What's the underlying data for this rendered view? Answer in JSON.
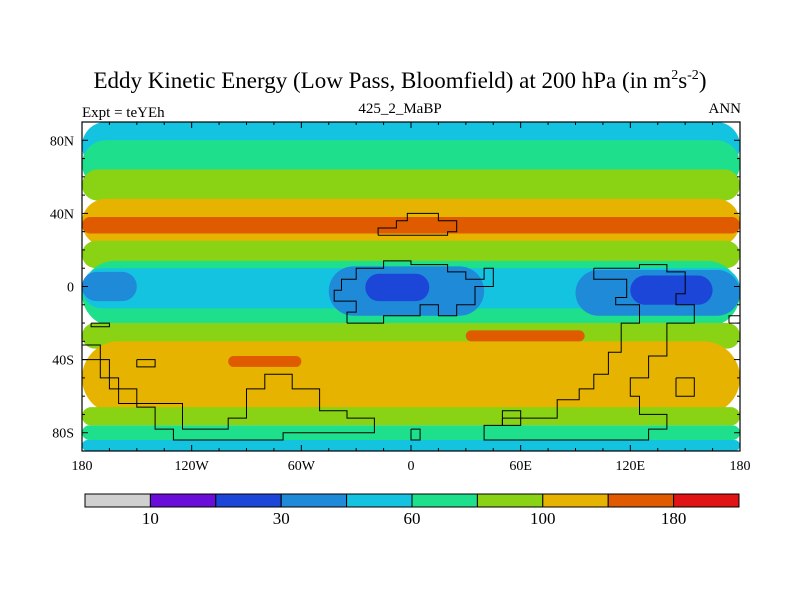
{
  "chart_data": {
    "type": "heatmap",
    "title": {
      "prefix": "Eddy Kinetic Energy (Low Pass, Bloomfield) at 200 hPa (in m",
      "sup1": "2",
      "mid": "s",
      "sup2": "-2",
      "suffix": ")"
    },
    "subtitle": "425_2_MaBP",
    "left_label": "Expt = teYEh",
    "right_label": "ANN",
    "xlim": [
      -180,
      180
    ],
    "ylim": [
      -90,
      90
    ],
    "x_ticks": [
      {
        "value": -180,
        "label": "180"
      },
      {
        "value": -120,
        "label": "120W"
      },
      {
        "value": -60,
        "label": "60W"
      },
      {
        "value": 0,
        "label": "0"
      },
      {
        "value": 60,
        "label": "60E"
      },
      {
        "value": 120,
        "label": "120E"
      },
      {
        "value": 180,
        "label": "180"
      }
    ],
    "y_ticks": [
      {
        "value": 80,
        "label": "80N"
      },
      {
        "value": 40,
        "label": "40N"
      },
      {
        "value": 0,
        "label": "0"
      },
      {
        "value": -40,
        "label": "40S"
      },
      {
        "value": -80,
        "label": "80S"
      }
    ],
    "colorbar": {
      "colors": [
        "#d0d0d0",
        "#6a0dd8",
        "#1c46d8",
        "#1e8ad8",
        "#14c3e0",
        "#1ee08c",
        "#8ad214",
        "#e6b400",
        "#e05a00",
        "#e01414"
      ],
      "labels": [
        {
          "boundary": 1,
          "text": "10"
        },
        {
          "boundary": 3,
          "text": "30"
        },
        {
          "boundary": 5,
          "text": "60"
        },
        {
          "boundary": 7,
          "text": "100"
        },
        {
          "boundary": 9,
          "text": "180"
        }
      ]
    },
    "fields": [
      {
        "level": 4,
        "lat": [
          64,
          90
        ],
        "lon": [
          -180,
          180
        ]
      },
      {
        "level": 5,
        "lat": [
          54,
          80
        ],
        "lon": [
          -180,
          180
        ]
      },
      {
        "level": 6,
        "lat": [
          47,
          64
        ],
        "lon": [
          -180,
          180
        ]
      },
      {
        "level": 7,
        "lat": [
          22,
          48
        ],
        "lon": [
          -180,
          180
        ]
      },
      {
        "level": 8,
        "lat": [
          29,
          38
        ],
        "lon": [
          -180,
          180
        ]
      },
      {
        "level": 6,
        "lat": [
          10,
          25
        ],
        "lon": [
          -180,
          180
        ]
      },
      {
        "level": 5,
        "lat": [
          -22,
          14
        ],
        "lon": [
          -180,
          180
        ]
      },
      {
        "level": 4,
        "lat": [
          -12,
          10
        ],
        "lon": [
          -180,
          180
        ]
      },
      {
        "level": 3,
        "lat": [
          -8,
          8
        ],
        "lon": [
          -180,
          -150
        ]
      },
      {
        "level": 3,
        "lat": [
          -16,
          11
        ],
        "lon": [
          -45,
          40
        ]
      },
      {
        "level": 2,
        "lat": [
          -8,
          7
        ],
        "lon": [
          -25,
          10
        ]
      },
      {
        "level": 3,
        "lat": [
          -16,
          9
        ],
        "lon": [
          90,
          180
        ]
      },
      {
        "level": 2,
        "lat": [
          -10,
          6
        ],
        "lon": [
          120,
          165
        ]
      },
      {
        "level": 6,
        "lat": [
          -34,
          -20
        ],
        "lon": [
          -180,
          180
        ]
      },
      {
        "level": 7,
        "lat": [
          -70,
          -30
        ],
        "lon": [
          -180,
          180
        ]
      },
      {
        "level": 8,
        "lat": [
          -30,
          -24
        ],
        "lon": [
          30,
          95
        ]
      },
      {
        "level": 8,
        "lat": [
          -44,
          -38
        ],
        "lon": [
          -100,
          -60
        ]
      },
      {
        "level": 6,
        "lat": [
          -76,
          -66
        ],
        "lon": [
          -180,
          180
        ]
      },
      {
        "level": 5,
        "lat": [
          -84,
          -76
        ],
        "lon": [
          -180,
          180
        ]
      },
      {
        "level": 4,
        "lat": [
          -90,
          -84
        ],
        "lon": [
          -180,
          180
        ]
      }
    ],
    "coastlines": [
      [
        [
          -35,
          -20
        ],
        [
          -35,
          -14
        ],
        [
          -30,
          -14
        ],
        [
          -30,
          -8
        ],
        [
          -42,
          -8
        ],
        [
          -42,
          -2
        ],
        [
          -38,
          -2
        ],
        [
          -38,
          4
        ],
        [
          -30,
          4
        ],
        [
          -30,
          10
        ],
        [
          -15,
          10
        ],
        [
          -15,
          14
        ],
        [
          0,
          14
        ],
        [
          0,
          12
        ],
        [
          20,
          12
        ],
        [
          20,
          8
        ],
        [
          30,
          8
        ],
        [
          30,
          4
        ],
        [
          40,
          4
        ],
        [
          40,
          10
        ],
        [
          45,
          10
        ],
        [
          45,
          0
        ],
        [
          35,
          0
        ],
        [
          35,
          -10
        ],
        [
          25,
          -10
        ],
        [
          25,
          -16
        ],
        [
          15,
          -16
        ],
        [
          15,
          -10
        ],
        [
          5,
          -10
        ],
        [
          5,
          -16
        ],
        [
          -15,
          -16
        ],
        [
          -15,
          -20
        ],
        [
          -35,
          -20
        ]
      ],
      [
        [
          -18,
          28
        ],
        [
          -18,
          32
        ],
        [
          -8,
          32
        ],
        [
          -8,
          36
        ],
        [
          -2,
          36
        ],
        [
          -2,
          40
        ],
        [
          15,
          40
        ],
        [
          15,
          36
        ],
        [
          25,
          36
        ],
        [
          25,
          30
        ],
        [
          20,
          30
        ],
        [
          20,
          28
        ],
        [
          -18,
          28
        ]
      ],
      [
        [
          100,
          10
        ],
        [
          100,
          4
        ],
        [
          118,
          4
        ],
        [
          118,
          -6
        ],
        [
          112,
          -6
        ],
        [
          112,
          -10
        ],
        [
          125,
          -10
        ],
        [
          125,
          -20
        ],
        [
          115,
          -20
        ],
        [
          115,
          -36
        ],
        [
          108,
          -36
        ],
        [
          108,
          -48
        ],
        [
          100,
          -48
        ],
        [
          100,
          -56
        ],
        [
          92,
          -56
        ],
        [
          92,
          -62
        ],
        [
          80,
          -62
        ],
        [
          80,
          -72
        ],
        [
          60,
          -72
        ],
        [
          60,
          -68
        ],
        [
          50,
          -68
        ],
        [
          50,
          -76
        ],
        [
          40,
          -76
        ],
        [
          40,
          -84
        ],
        [
          130,
          -84
        ],
        [
          130,
          -78
        ],
        [
          140,
          -78
        ],
        [
          140,
          -70
        ],
        [
          125,
          -70
        ],
        [
          125,
          -60
        ],
        [
          120,
          -60
        ],
        [
          120,
          -50
        ],
        [
          130,
          -50
        ],
        [
          130,
          -38
        ],
        [
          140,
          -38
        ],
        [
          140,
          -20
        ],
        [
          155,
          -20
        ],
        [
          155,
          -10
        ],
        [
          145,
          -10
        ],
        [
          145,
          -4
        ],
        [
          150,
          -4
        ],
        [
          150,
          8
        ],
        [
          140,
          8
        ],
        [
          140,
          12
        ],
        [
          125,
          12
        ],
        [
          125,
          10
        ],
        [
          100,
          10
        ]
      ],
      [
        [
          -175,
          -20
        ],
        [
          -175,
          -22
        ],
        [
          -165,
          -22
        ],
        [
          -165,
          -20
        ],
        [
          -175,
          -20
        ]
      ],
      [
        [
          -180,
          -32
        ],
        [
          -170,
          -32
        ],
        [
          -170,
          -50
        ],
        [
          -160,
          -50
        ],
        [
          -160,
          -64
        ],
        [
          -125,
          -64
        ],
        [
          -125,
          -76
        ],
        [
          -125,
          -78
        ],
        [
          -100,
          -78
        ],
        [
          -100,
          -72
        ],
        [
          -90,
          -72
        ],
        [
          -90,
          -56
        ],
        [
          -80,
          -56
        ],
        [
          -80,
          -48
        ],
        [
          -65,
          -48
        ],
        [
          -65,
          -56
        ],
        [
          -50,
          -56
        ],
        [
          -50,
          -68
        ],
        [
          -35,
          -68
        ],
        [
          -35,
          -72
        ],
        [
          -20,
          -72
        ],
        [
          -20,
          -80
        ],
        [
          -70,
          -80
        ],
        [
          -70,
          -84
        ],
        [
          -130,
          -84
        ],
        [
          -130,
          -78
        ],
        [
          -140,
          -78
        ],
        [
          -140,
          -66
        ],
        [
          -150,
          -66
        ],
        [
          -150,
          -56
        ],
        [
          -165,
          -56
        ],
        [
          -165,
          -40
        ],
        [
          -180,
          -40
        ]
      ],
      [
        [
          -150,
          -40
        ],
        [
          -140,
          -40
        ],
        [
          -140,
          -44
        ],
        [
          -150,
          -44
        ],
        [
          -150,
          -40
        ]
      ],
      [
        [
          145,
          -50
        ],
        [
          155,
          -50
        ],
        [
          155,
          -60
        ],
        [
          145,
          -60
        ],
        [
          145,
          -50
        ]
      ],
      [
        [
          0,
          -78
        ],
        [
          0,
          -84
        ],
        [
          5,
          -84
        ],
        [
          5,
          -78
        ],
        [
          0,
          -78
        ]
      ],
      [
        [
          50,
          -72
        ],
        [
          60,
          -72
        ],
        [
          60,
          -76
        ],
        [
          50,
          -76
        ],
        [
          50,
          -72
        ]
      ],
      [
        [
          174,
          -20
        ],
        [
          180,
          -20
        ],
        [
          180,
          -16
        ],
        [
          174,
          -16
        ],
        [
          174,
          -20
        ]
      ]
    ]
  }
}
